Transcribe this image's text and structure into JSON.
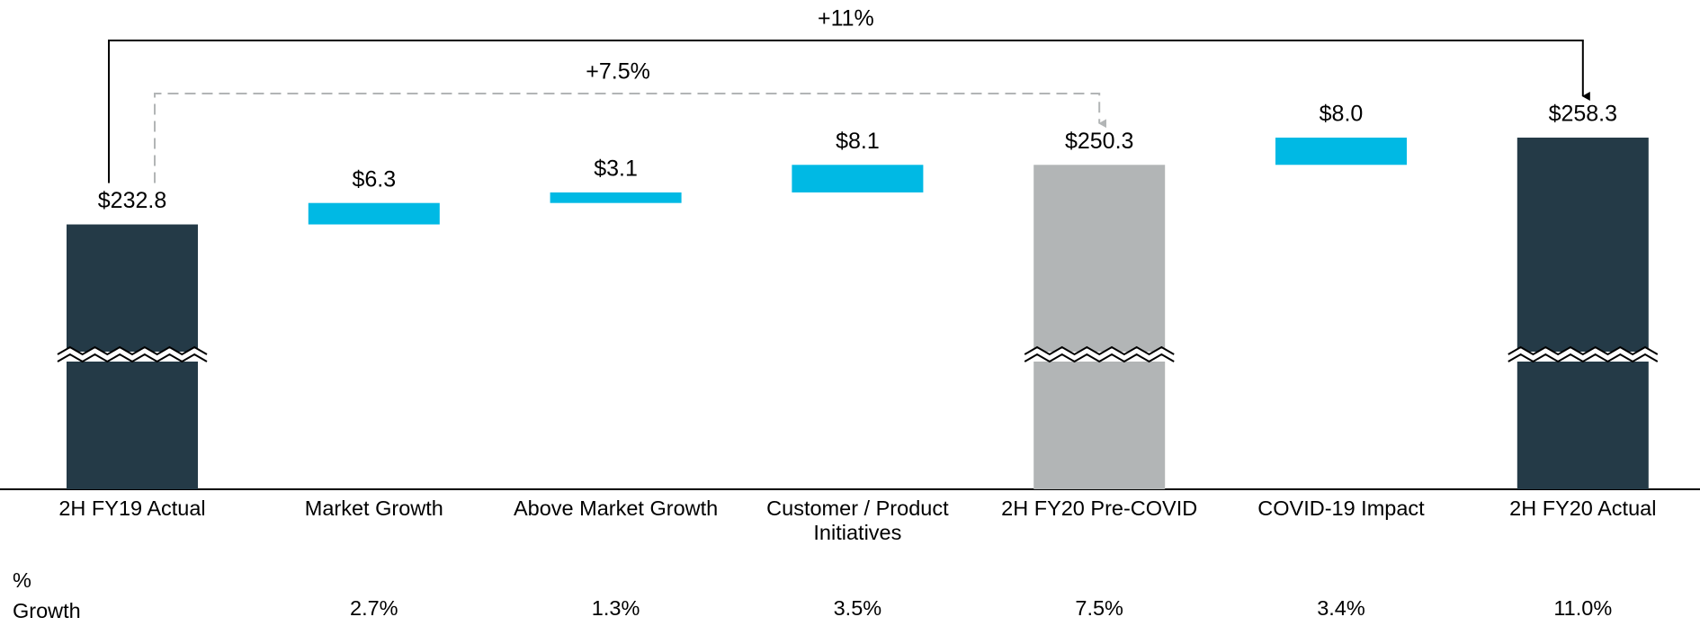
{
  "chart_data": {
    "type": "waterfall",
    "categories": [
      "2H FY19 Actual",
      "Market Growth",
      "Above Market Growth",
      "Customer / Product Initiatives",
      "2H FY20 Pre-COVID",
      "COVID-19 Impact",
      "2H FY20 Actual"
    ],
    "values": [
      232.8,
      6.3,
      3.1,
      8.1,
      250.3,
      8.0,
      258.3
    ],
    "value_labels": [
      "$232.8",
      "$6.3",
      "$3.1",
      "$8.1",
      "$250.3",
      "$8.0",
      "$258.3"
    ],
    "kinds": [
      "total",
      "delta",
      "delta",
      "delta",
      "total",
      "delta",
      "total"
    ],
    "colors": [
      "#243a47",
      "#00b9e4",
      "#00b9e4",
      "#00b9e4",
      "#b2b5b6",
      "#00b9e4",
      "#243a47"
    ],
    "ylim": [
      155,
      265
    ],
    "axis_break": true,
    "annotations": [
      "+11%",
      "+7.5%"
    ],
    "growth_title": "% Growth",
    "growth": [
      null,
      "2.7%",
      "1.3%",
      "3.5%",
      "7.5%",
      "3.4%",
      "11.0%"
    ]
  }
}
